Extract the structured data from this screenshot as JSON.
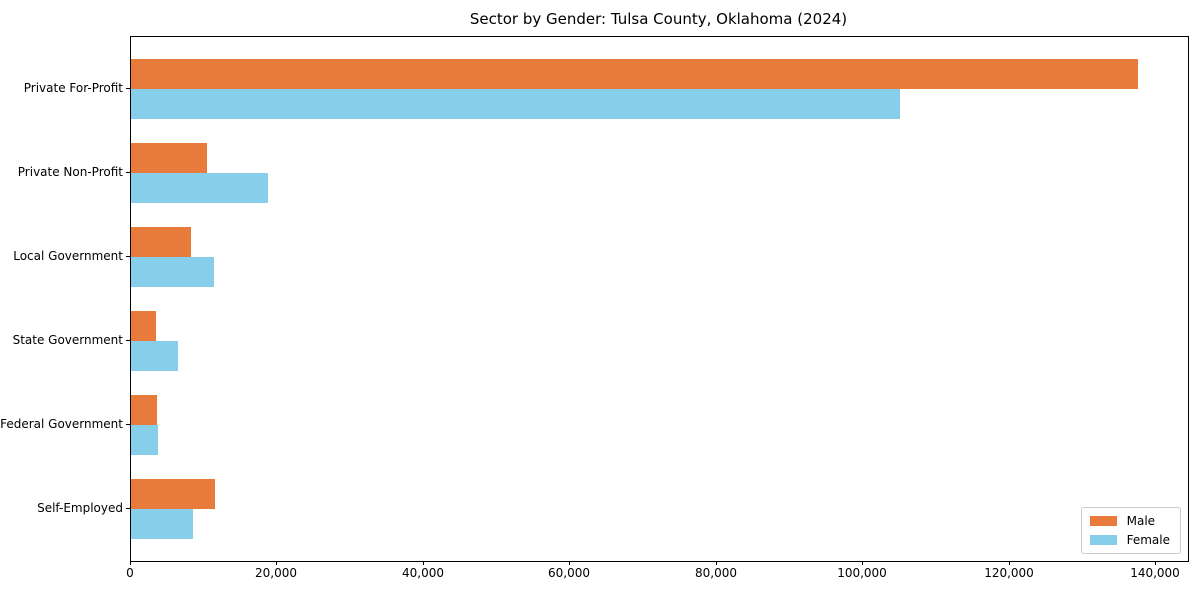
{
  "page": {
    "background": "#ffffff",
    "text_color": "#000000"
  },
  "chart_data": {
    "type": "bar",
    "orientation": "horizontal",
    "title": "Sector by Gender: Tulsa County, Oklahoma (2024)",
    "categories": [
      "Private For-Profit",
      "Private Non-Profit",
      "Local Government",
      "State Government",
      "Federal Government",
      "Self-Employed"
    ],
    "series": [
      {
        "name": "Male",
        "color": "#e87a3c",
        "values": [
          137500,
          10400,
          8200,
          3400,
          3500,
          11500
        ]
      },
      {
        "name": "Female",
        "color": "#87ceeb",
        "values": [
          105000,
          18700,
          11300,
          6400,
          3700,
          8500
        ]
      }
    ],
    "xlabel": "",
    "ylabel": "",
    "xlim": [
      0,
      144375
    ],
    "x_ticks": [
      0,
      20000,
      40000,
      60000,
      80000,
      100000,
      120000,
      140000
    ],
    "x_tick_labels": [
      "0",
      "20,000",
      "40,000",
      "60,000",
      "80,000",
      "100,000",
      "120,000",
      "140,000"
    ],
    "grid": false,
    "legend": {
      "position": "lower right",
      "entries": [
        "Male",
        "Female"
      ]
    }
  }
}
